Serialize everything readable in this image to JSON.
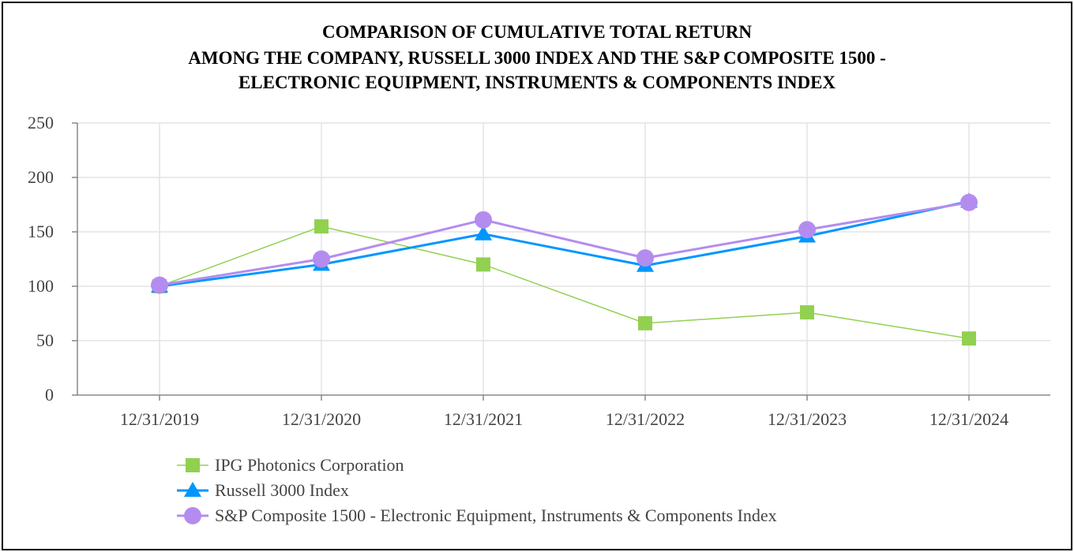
{
  "chart_data": {
    "type": "line",
    "title_lines": [
      "COMPARISON OF CUMULATIVE TOTAL RETURN",
      "AMONG THE COMPANY, RUSSELL 3000 INDEX AND THE S&P COMPOSITE 1500 -",
      "ELECTRONIC EQUIPMENT, INSTRUMENTS & COMPONENTS INDEX"
    ],
    "categories": [
      "12/31/2019",
      "12/31/2020",
      "12/31/2021",
      "12/31/2022",
      "12/31/2023",
      "12/31/2024"
    ],
    "yticks": [
      0,
      50,
      100,
      150,
      200,
      250
    ],
    "ylim": [
      0,
      250
    ],
    "grid": true,
    "legend_position": "bottom-left",
    "series": [
      {
        "name": "IPG Photonics Corporation",
        "values": [
          100,
          155,
          120,
          66,
          76,
          52
        ],
        "color": "#92D050",
        "marker": "square",
        "line_width": 1.5
      },
      {
        "name": "Russell 3000 Index",
        "values": [
          100,
          120,
          148,
          119,
          146,
          178
        ],
        "color": "#0096FF",
        "marker": "triangle",
        "line_width": 3
      },
      {
        "name": "S&P Composite 1500 - Electronic Equipment, Instruments & Components Index",
        "values": [
          101,
          125,
          161,
          126,
          152,
          177
        ],
        "color": "#B48CF0",
        "marker": "circle",
        "line_width": 3
      }
    ]
  }
}
